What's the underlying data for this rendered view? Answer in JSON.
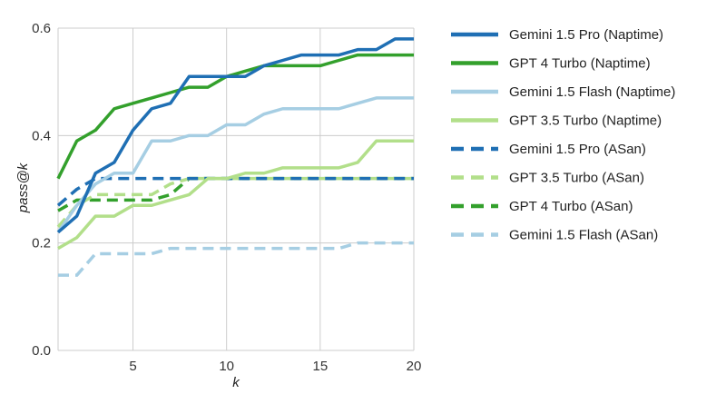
{
  "chart_data": {
    "type": "line",
    "title": "",
    "xlabel": "k",
    "ylabel": "pass@k",
    "xlim": [
      1,
      20
    ],
    "ylim": [
      0,
      0.6
    ],
    "xticks": [
      5,
      10,
      15,
      20
    ],
    "yticks": [
      0.0,
      0.2,
      0.4,
      0.6
    ],
    "xtick_labels": [
      "5",
      "10",
      "15",
      "20"
    ],
    "ytick_labels": [
      "0.0",
      "0.2",
      "0.4",
      "0.6"
    ],
    "grid": true,
    "legend_position": "right",
    "x": [
      1,
      2,
      3,
      4,
      5,
      6,
      7,
      8,
      9,
      10,
      11,
      12,
      13,
      14,
      15,
      16,
      17,
      18,
      19,
      20
    ],
    "series": [
      {
        "name": "Gemini 1.5 Pro (Naptime)",
        "color": "#1f6fb4",
        "dash": "solid",
        "values": [
          0.22,
          0.25,
          0.33,
          0.35,
          0.41,
          0.45,
          0.46,
          0.51,
          0.51,
          0.51,
          0.51,
          0.53,
          0.54,
          0.55,
          0.55,
          0.55,
          0.56,
          0.56,
          0.58,
          0.58
        ]
      },
      {
        "name": "GPT 4 Turbo (Naptime)",
        "color": "#33a02c",
        "dash": "solid",
        "values": [
          0.32,
          0.39,
          0.41,
          0.45,
          0.46,
          0.47,
          0.48,
          0.49,
          0.49,
          0.51,
          0.52,
          0.53,
          0.53,
          0.53,
          0.53,
          0.54,
          0.55,
          0.55,
          0.55,
          0.55
        ]
      },
      {
        "name": "Gemini 1.5 Flash (Naptime)",
        "color": "#a6cee3",
        "dash": "solid",
        "values": [
          0.22,
          0.27,
          0.31,
          0.33,
          0.33,
          0.39,
          0.39,
          0.4,
          0.4,
          0.42,
          0.42,
          0.44,
          0.45,
          0.45,
          0.45,
          0.45,
          0.46,
          0.47,
          0.47,
          0.47
        ]
      },
      {
        "name": "GPT 3.5 Turbo (Naptime)",
        "color": "#b2df8a",
        "dash": "solid",
        "values": [
          0.19,
          0.21,
          0.25,
          0.25,
          0.27,
          0.27,
          0.28,
          0.29,
          0.32,
          0.32,
          0.33,
          0.33,
          0.34,
          0.34,
          0.34,
          0.34,
          0.35,
          0.39,
          0.39,
          0.39
        ]
      },
      {
        "name": "Gemini 1.5 Pro (ASan)",
        "color": "#1f6fb4",
        "dash": "dashed",
        "values": [
          0.27,
          0.3,
          0.32,
          0.32,
          0.32,
          0.32,
          0.32,
          0.32,
          0.32,
          0.32,
          0.32,
          0.32,
          0.32,
          0.32,
          0.32,
          0.32,
          0.32,
          0.32,
          0.32,
          0.32
        ]
      },
      {
        "name": "GPT 3.5 Turbo (ASan)",
        "color": "#b2df8a",
        "dash": "dashed",
        "values": [
          0.23,
          0.27,
          0.29,
          0.29,
          0.29,
          0.29,
          0.31,
          0.32,
          0.32,
          0.32,
          0.32,
          0.32,
          0.32,
          0.32,
          0.32,
          0.32,
          0.32,
          0.32,
          0.32,
          0.32
        ]
      },
      {
        "name": "GPT 4 Turbo (ASan)",
        "color": "#33a02c",
        "dash": "dashed",
        "values": [
          0.26,
          0.28,
          0.28,
          0.28,
          0.28,
          0.28,
          0.29,
          0.32,
          0.32,
          0.32,
          0.32,
          0.32,
          0.32,
          0.32,
          0.32,
          0.32,
          0.32,
          0.32,
          0.32,
          0.32
        ]
      },
      {
        "name": "Gemini 1.5 Flash (ASan)",
        "color": "#a6cee3",
        "dash": "dashed",
        "values": [
          0.14,
          0.14,
          0.18,
          0.18,
          0.18,
          0.18,
          0.19,
          0.19,
          0.19,
          0.19,
          0.19,
          0.19,
          0.19,
          0.19,
          0.19,
          0.19,
          0.2,
          0.2,
          0.2,
          0.2
        ]
      }
    ]
  }
}
